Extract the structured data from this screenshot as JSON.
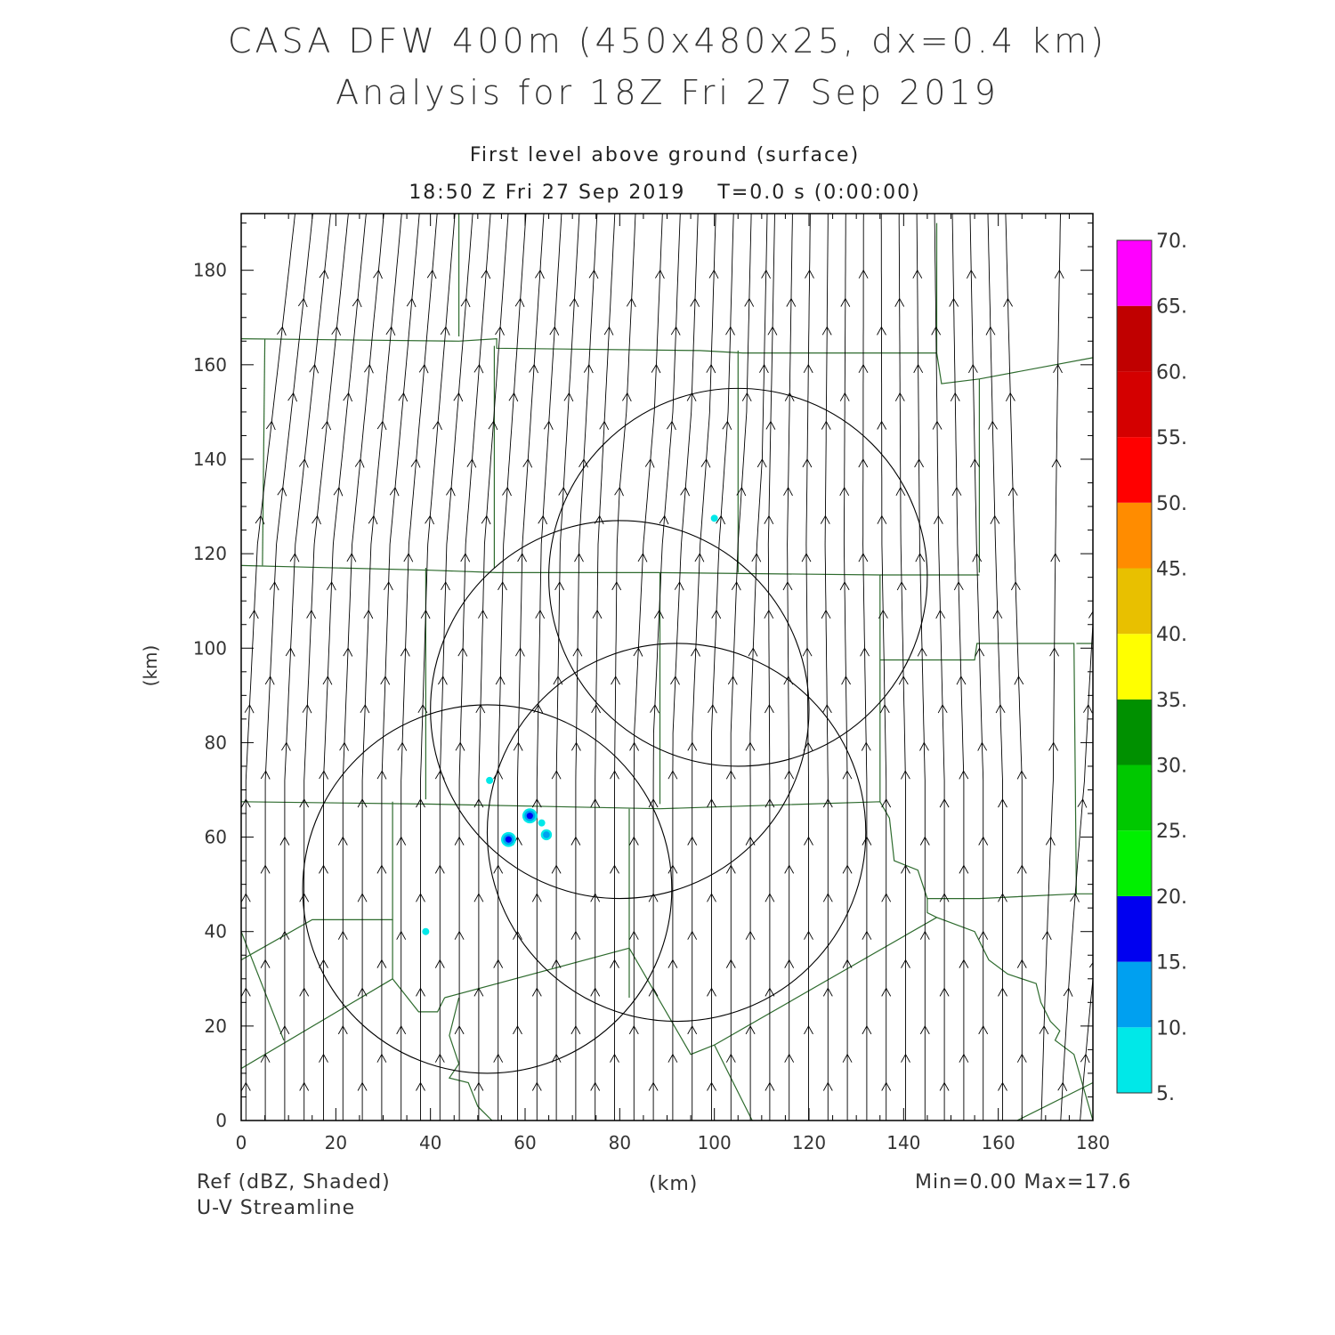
{
  "titles": {
    "line1": "CASA DFW 400m (450x480x25, dx=0.4 km)",
    "line2": "Analysis for 18Z Fri 27 Sep 2019",
    "level": "First level above ground (surface)",
    "time": "18:50 Z Fri 27 Sep 2019    T=0.0 s (0:00:00)"
  },
  "footer": {
    "field": "Ref (dBZ, Shaded)",
    "overlay": "U-V Streamline",
    "xunit": "(km)",
    "minmax": "Min=0.00 Max=17.6"
  },
  "colors": {
    "boundary": "#2e6b2e",
    "streamline": "#000000",
    "range_ring": "#000000"
  },
  "chart_data": {
    "type": "map",
    "xlabel": "(km)",
    "ylabel": "(km)",
    "xlim": [
      0,
      180
    ],
    "ylim": [
      0,
      192
    ],
    "x_ticks": [
      0,
      20,
      40,
      60,
      80,
      100,
      120,
      140,
      160,
      180
    ],
    "y_ticks": [
      0,
      20,
      40,
      60,
      80,
      100,
      120,
      140,
      160,
      180
    ],
    "x_tick_labels": [
      "0",
      "20",
      "40",
      "60",
      "80",
      "100",
      "120",
      "140",
      "160",
      "180"
    ],
    "y_tick_labels": [
      "0",
      "20",
      "40",
      "60",
      "80",
      "100",
      "120",
      "140",
      "160",
      "180"
    ],
    "colorbar": {
      "labels": [
        "5.",
        "10.",
        "15.",
        "20.",
        "25.",
        "30.",
        "35.",
        "40.",
        "45.",
        "50.",
        "55.",
        "60.",
        "65.",
        "70."
      ],
      "colors": [
        "#00e8e8",
        "#00a0f0",
        "#0000f0",
        "#00f000",
        "#00c800",
        "#009000",
        "#ffff00",
        "#e8c000",
        "#ff8c00",
        "#ff0000",
        "#d40000",
        "#c00000",
        "#ff00ff"
      ]
    },
    "range_rings": [
      {
        "center": [
          52,
          49
        ],
        "radius": 39
      },
      {
        "center": [
          80,
          87
        ],
        "radius": 40
      },
      {
        "center": [
          92,
          61
        ],
        "radius": 40
      },
      {
        "center": [
          105,
          115
        ],
        "radius": 40
      }
    ],
    "reflectivity_echoes": [
      {
        "x": 61,
        "y": 64.5,
        "dbz": 17.6
      },
      {
        "x": 56.5,
        "y": 59.5,
        "dbz": 15
      },
      {
        "x": 64.5,
        "y": 60.5,
        "dbz": 12
      },
      {
        "x": 63.5,
        "y": 63,
        "dbz": 8
      },
      {
        "x": 52.5,
        "y": 72,
        "dbz": 7
      },
      {
        "x": 100,
        "y": 127.5,
        "dbz": 7
      },
      {
        "x": 39,
        "y": 40,
        "dbz": 6
      }
    ],
    "county_boundaries": [
      [
        [
          0,
          165.5
        ],
        [
          46,
          165
        ],
        [
          54,
          165.5
        ],
        [
          54,
          163.5
        ],
        [
          97,
          163
        ],
        [
          106,
          162.5
        ],
        [
          147,
          162.5
        ]
      ],
      [
        [
          147,
          190
        ],
        [
          147,
          162.5
        ],
        [
          148,
          156
        ],
        [
          156,
          157
        ],
        [
          180,
          161.5
        ]
      ],
      [
        [
          156,
          157
        ],
        [
          156,
          116
        ]
      ],
      [
        [
          0,
          117.5
        ],
        [
          40,
          116.5
        ],
        [
          54,
          116
        ],
        [
          88,
          116
        ],
        [
          135,
          115.5
        ],
        [
          156,
          115.5
        ]
      ],
      [
        [
          5,
          165.5
        ],
        [
          4.5,
          117.5
        ]
      ],
      [
        [
          53.5,
          164
        ],
        [
          53.5,
          117
        ]
      ],
      [
        [
          46,
          192
        ],
        [
          46,
          166
        ]
      ],
      [
        [
          105,
          163
        ],
        [
          105,
          116
        ]
      ],
      [
        [
          39,
          117
        ],
        [
          39,
          68
        ]
      ],
      [
        [
          88.5,
          116
        ],
        [
          88.5,
          67
        ]
      ],
      [
        [
          135,
          115.5
        ],
        [
          135,
          67.5
        ]
      ],
      [
        [
          135,
          97.5
        ],
        [
          155,
          97.5
        ],
        [
          155.5,
          101
        ],
        [
          176,
          101
        ],
        [
          176.5,
          48
        ]
      ],
      [
        [
          176.5,
          101
        ],
        [
          180,
          101
        ]
      ],
      [
        [
          176.5,
          48
        ],
        [
          180,
          48
        ]
      ],
      [
        [
          0,
          67.5
        ],
        [
          39,
          67
        ],
        [
          88.5,
          66
        ],
        [
          135,
          67.5
        ],
        [
          137,
          64
        ],
        [
          138,
          55
        ],
        [
          143,
          53
        ],
        [
          145,
          47
        ],
        [
          156,
          47
        ],
        [
          176.5,
          48
        ]
      ],
      [
        [
          32,
          67.5
        ],
        [
          32,
          42.5
        ],
        [
          15,
          42.5
        ],
        [
          0,
          34
        ]
      ],
      [
        [
          0,
          40
        ],
        [
          9,
          17
        ]
      ],
      [
        [
          32,
          42.5
        ],
        [
          32,
          30
        ],
        [
          37.5,
          23
        ],
        [
          41.5,
          23
        ],
        [
          43,
          26
        ]
      ],
      [
        [
          0,
          11
        ],
        [
          32,
          30
        ]
      ],
      [
        [
          82,
          66
        ],
        [
          82,
          26
        ]
      ],
      [
        [
          43,
          26
        ],
        [
          82,
          36.5
        ],
        [
          95,
          14
        ],
        [
          100,
          16
        ],
        [
          108,
          0
        ]
      ],
      [
        [
          46,
          26
        ],
        [
          44,
          18
        ],
        [
          46,
          12
        ],
        [
          44,
          9
        ],
        [
          48,
          8
        ],
        [
          50,
          3
        ],
        [
          53,
          0
        ]
      ],
      [
        [
          100,
          16
        ],
        [
          147,
          43
        ],
        [
          155,
          40
        ],
        [
          158,
          34
        ],
        [
          162,
          31
        ],
        [
          168,
          29
        ],
        [
          169,
          25
        ],
        [
          171,
          21
        ],
        [
          173,
          19
        ],
        [
          172,
          17
        ],
        [
          176,
          14
        ],
        [
          180,
          0
        ]
      ],
      [
        [
          164,
          0
        ],
        [
          180,
          8
        ]
      ],
      [
        [
          145,
          47
        ],
        [
          145,
          44
        ],
        [
          147,
          43
        ]
      ]
    ]
  }
}
